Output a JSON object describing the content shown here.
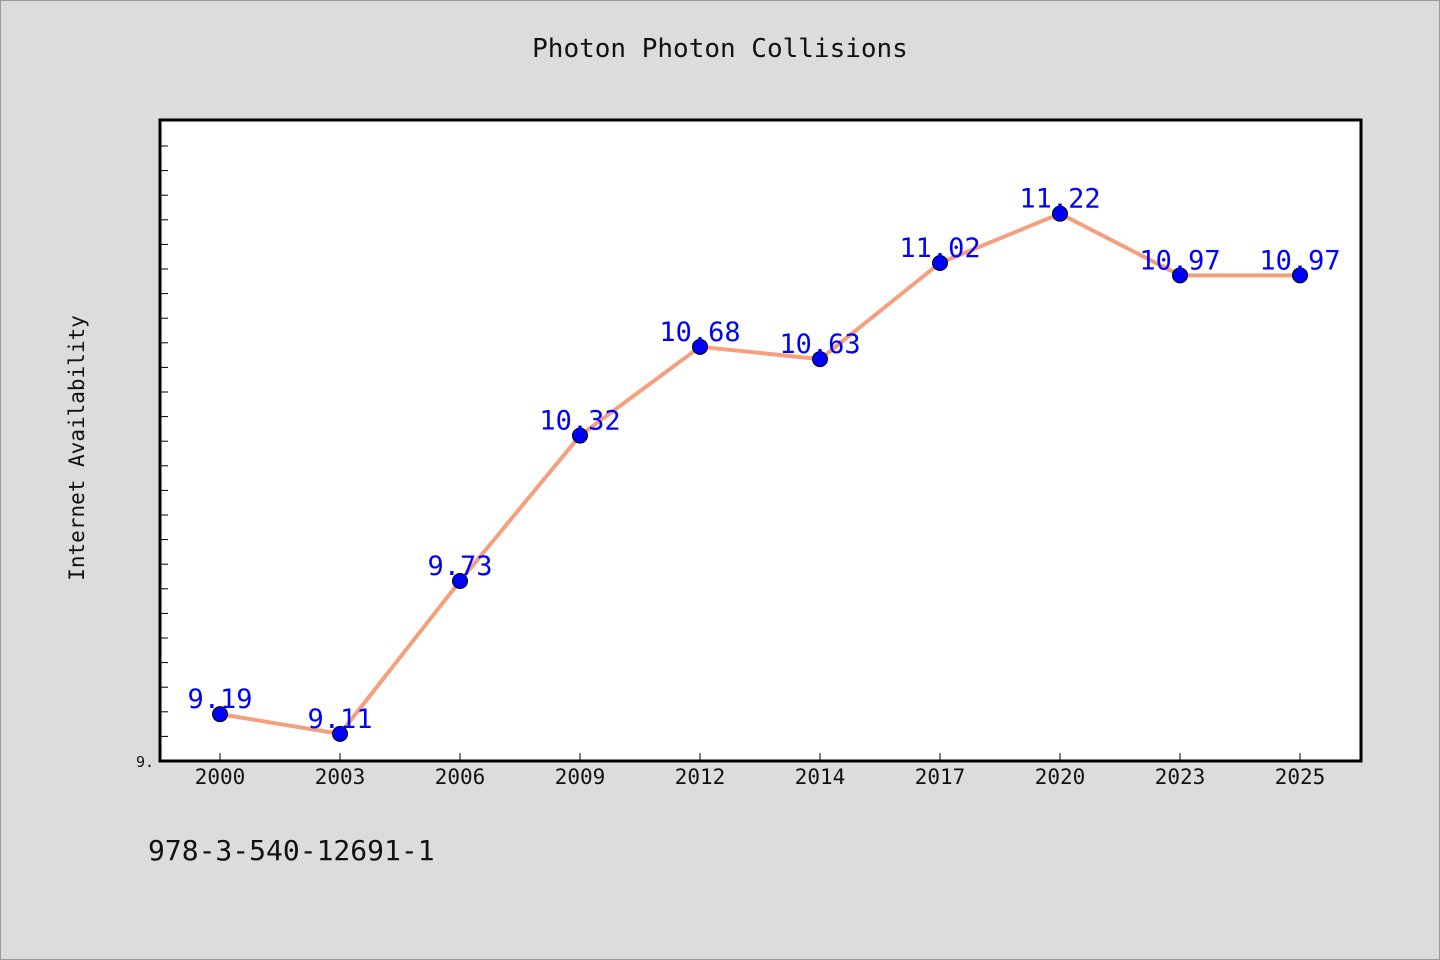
{
  "footer": {
    "code": "978-3-540-12691-1"
  },
  "chart_data": {
    "type": "line",
    "title": "Photon Photon Collisions",
    "xlabel": "",
    "ylabel": "Internet Availability",
    "categories": [
      "2000",
      "2003",
      "2006",
      "2009",
      "2012",
      "2014",
      "2017",
      "2020",
      "2023",
      "2025"
    ],
    "series": [
      {
        "values": [
          9.19,
          9.11,
          9.73,
          10.32,
          10.68,
          10.63,
          11.02,
          11.22,
          10.97,
          10.97
        ]
      }
    ],
    "data_labels": [
      "9.19",
      "9.11",
      "9.73",
      "10.32",
      "10.68",
      "10.63",
      "11.02",
      "11.22",
      "10.97",
      "10.97"
    ],
    "y_tick_label": "9.",
    "ylim": [
      9.0,
      11.6
    ],
    "grid": false,
    "legend": "none",
    "colors": {
      "line": "#f4a07e",
      "marker": "#0000ff",
      "label": "#0000ff",
      "background": "#dcdcdc",
      "plot_area": "#ffffff"
    }
  }
}
